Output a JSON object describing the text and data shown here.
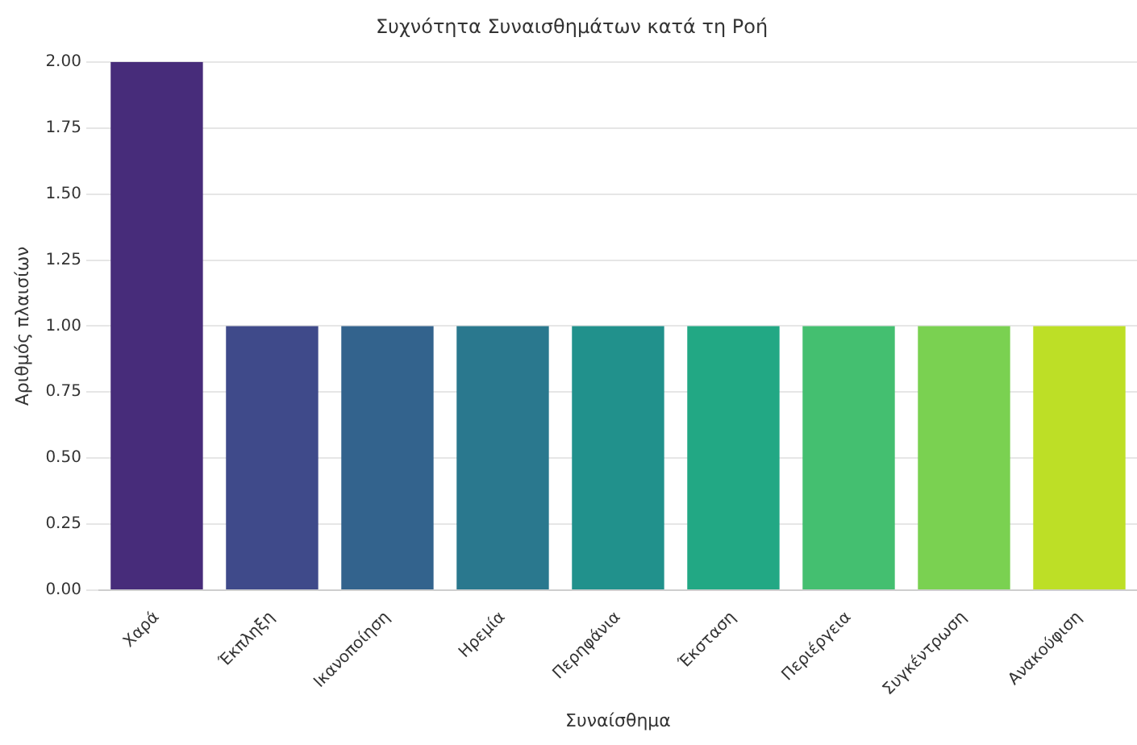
{
  "chart_data": {
    "type": "bar",
    "title": "Συχνότητα Συναισθημάτων κατά τη Ροή",
    "xlabel": "Συναίσθημα",
    "ylabel": "Αριθμός πλαισίων",
    "categories": [
      "Χαρά",
      "Έκπληξη",
      "Ικανοποίηση",
      "Ηρεμία",
      "Περηφάνια",
      "Έκσταση",
      "Περιέργεια",
      "Συγκέντρωση",
      "Ανακούφιση"
    ],
    "values": [
      2,
      1,
      1,
      1,
      1,
      1,
      1,
      1,
      1
    ],
    "colors": [
      "#472c7a",
      "#3f4a8a",
      "#33638d",
      "#2a788e",
      "#21918c",
      "#22a884",
      "#44bf70",
      "#7ad151",
      "#bddf26"
    ],
    "ylim": [
      0,
      2
    ],
    "yticks": [
      {
        "value": 0,
        "label": "0.00"
      },
      {
        "value": 0.25,
        "label": "0.25"
      },
      {
        "value": 0.5,
        "label": "0.50"
      },
      {
        "value": 0.75,
        "label": "0.75"
      },
      {
        "value": 1,
        "label": "1.00"
      },
      {
        "value": 1.25,
        "label": "1.25"
      },
      {
        "value": 1.5,
        "label": "1.50"
      },
      {
        "value": 1.75,
        "label": "1.75"
      },
      {
        "value": 2,
        "label": "2.00"
      }
    ],
    "grid": "y"
  }
}
